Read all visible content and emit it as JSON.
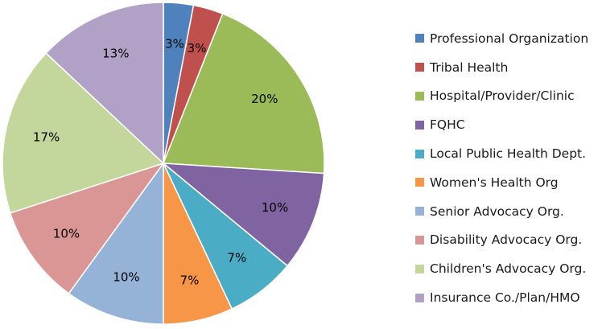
{
  "chart_data": {
    "type": "pie",
    "title": "",
    "start_angle_deg": 0,
    "direction": "clockwise",
    "legend_position": "right",
    "slices": [
      {
        "name": "Professional Organization",
        "value": 3,
        "label": "3%",
        "color": "#4f81bd"
      },
      {
        "name": "Tribal Health",
        "value": 3,
        "label": "3%",
        "color": "#c0504d"
      },
      {
        "name": "Hospital/Provider/Clinic",
        "value": 20,
        "label": "20%",
        "color": "#9bbb59"
      },
      {
        "name": "FQHC",
        "value": 10,
        "label": "10%",
        "color": "#8064a2"
      },
      {
        "name": "Local Public Health Dept.",
        "value": 7,
        "label": "7%",
        "color": "#4bacc6"
      },
      {
        "name": "Women's Health Org",
        "value": 7,
        "label": "7%",
        "color": "#f79646"
      },
      {
        "name": "Senior Advocacy Org.",
        "value": 10,
        "label": "10%",
        "color": "#95b3d7"
      },
      {
        "name": "Disability Advocacy Org.",
        "value": 10,
        "label": "10%",
        "color": "#d99694"
      },
      {
        "name": "Children's Advocacy Org.",
        "value": 17,
        "label": "17%",
        "color": "#c3d69b"
      },
      {
        "name": "Insurance Co./Plan/HMO",
        "value": 13,
        "label": "13%",
        "color": "#b2a1c7"
      }
    ]
  }
}
